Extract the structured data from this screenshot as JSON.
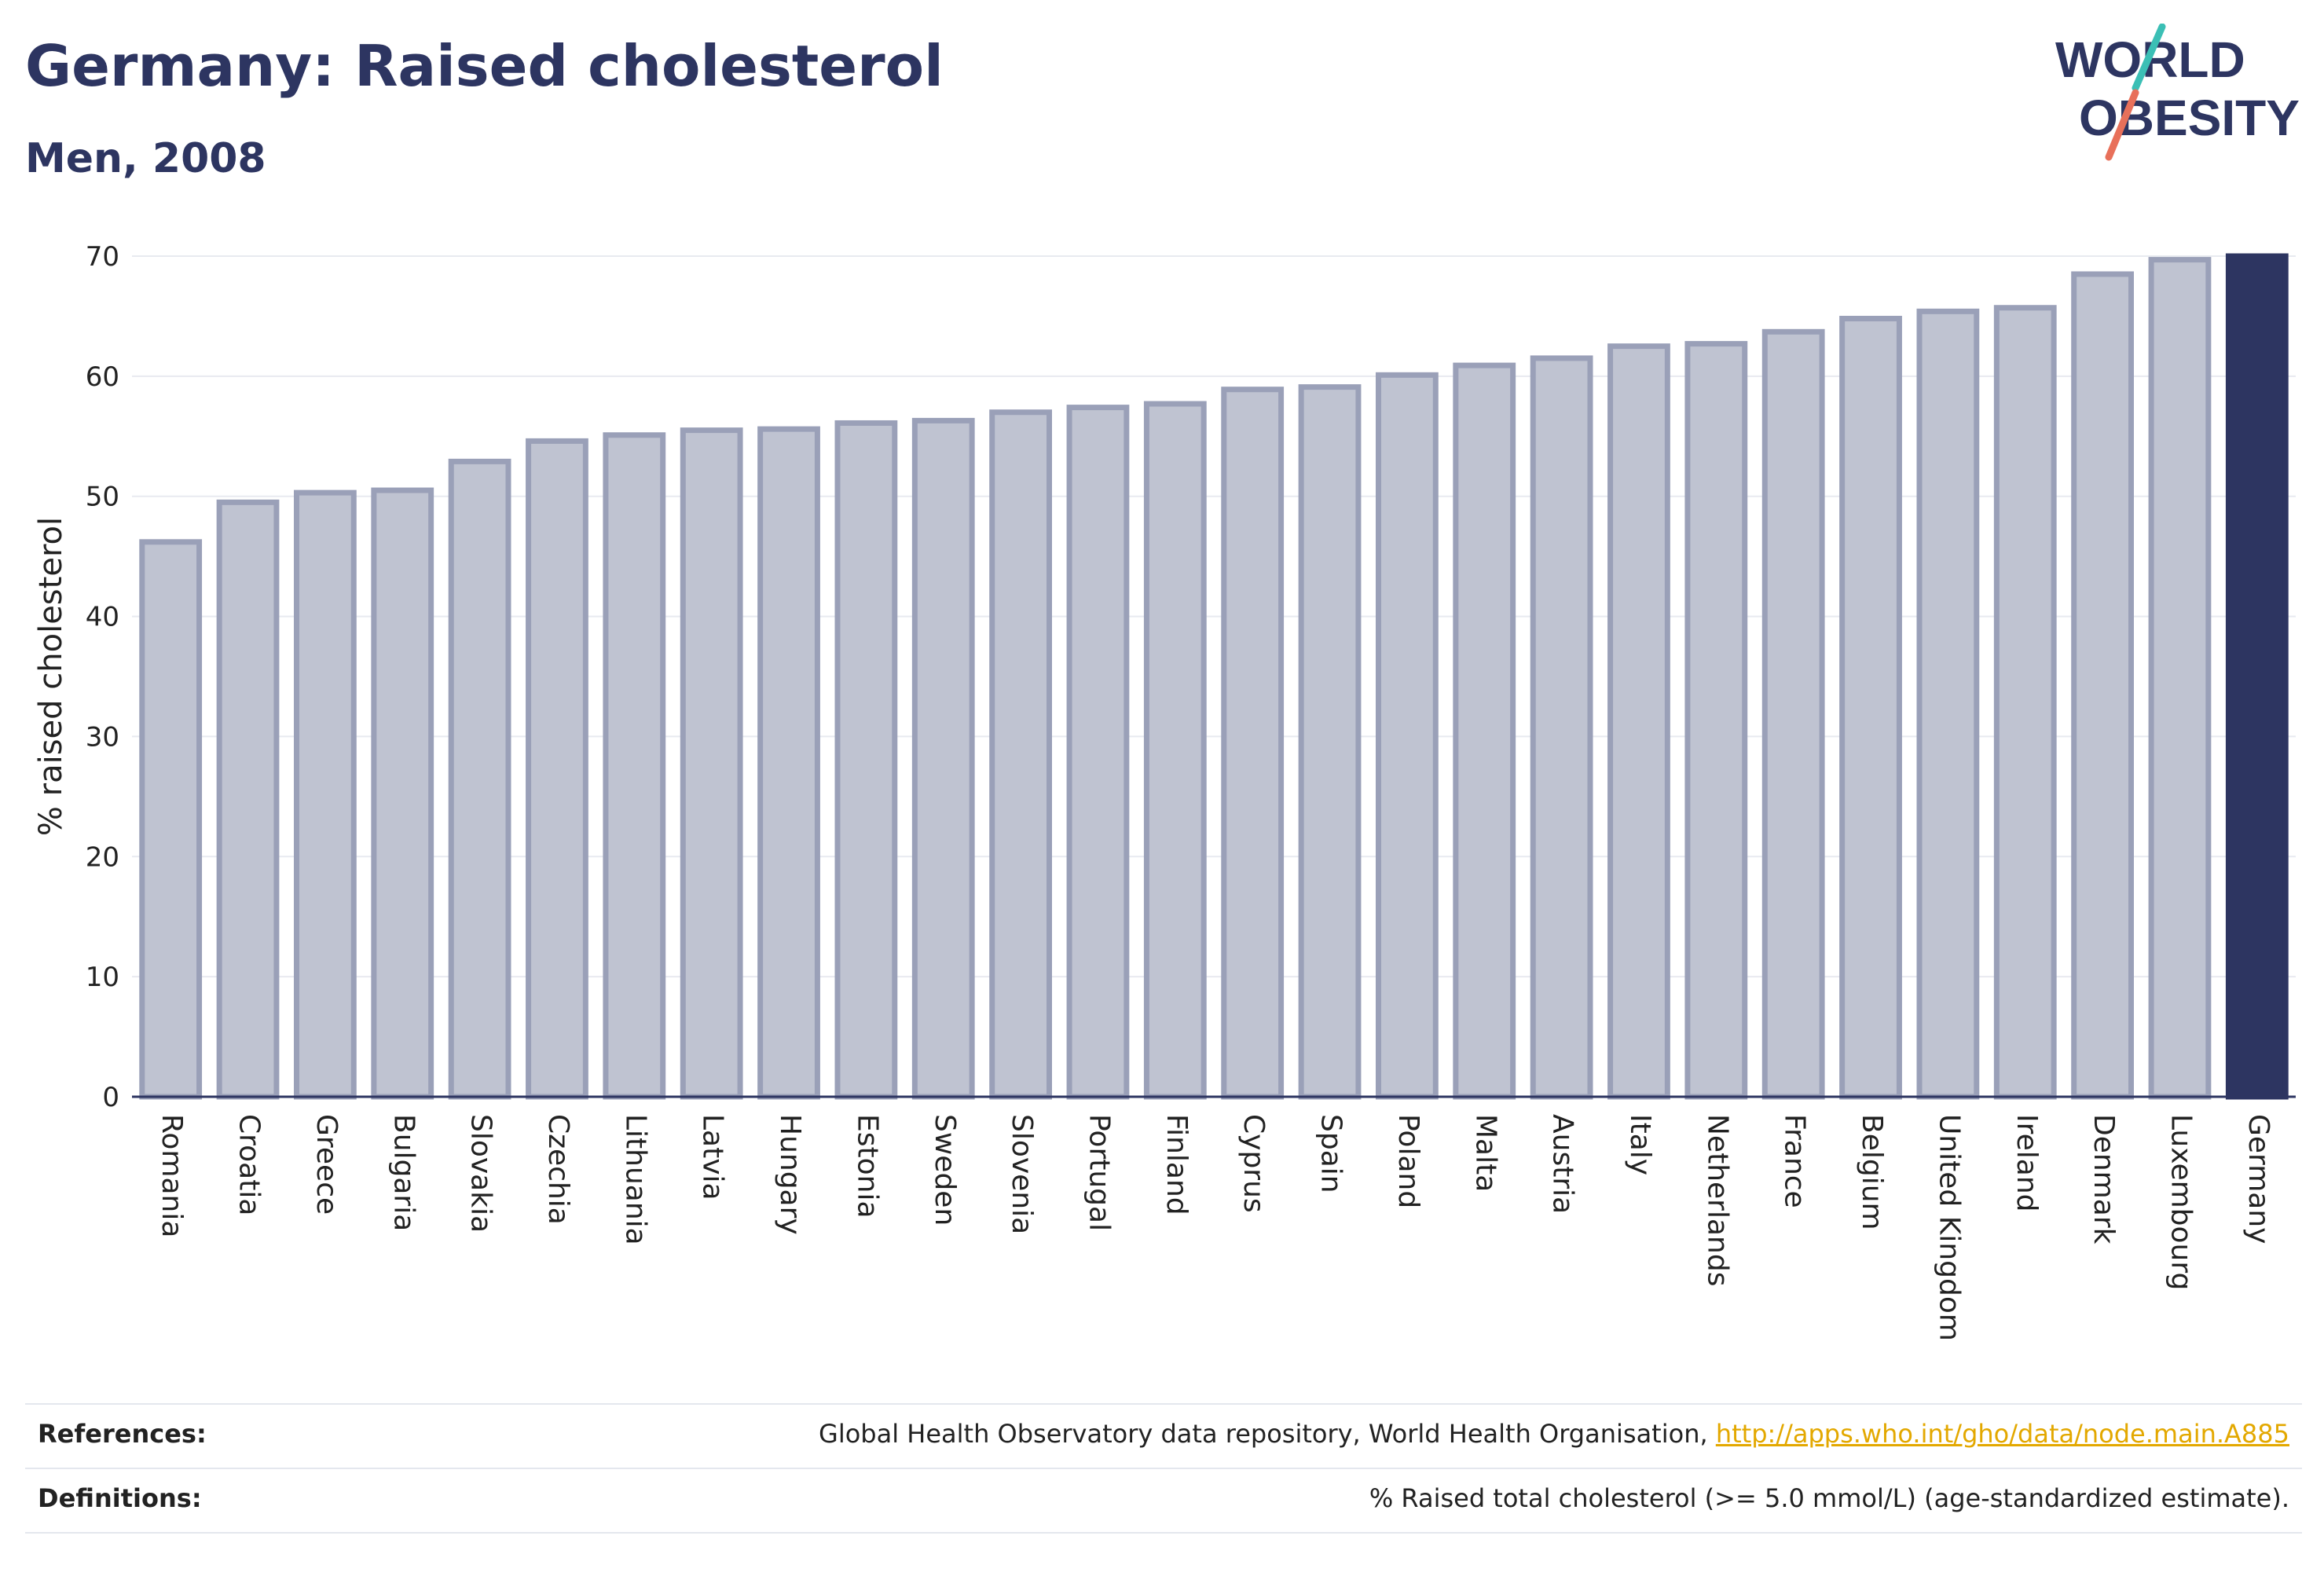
{
  "header": {
    "title": "Germany: Raised cholesterol",
    "subtitle": "Men, 2008"
  },
  "logo": {
    "line1": "WORLD",
    "line2": "OBESITY",
    "accent_teal": "#3bbfb5",
    "accent_coral": "#e8705a",
    "text_color": "#2d3561"
  },
  "colors": {
    "bar": "#bfc3d1",
    "bar_stroke": "#9aa0b8",
    "highlight": "#2d3561",
    "axis_text": "#222222",
    "grid": "#e8eaf0"
  },
  "chart_data": {
    "type": "bar",
    "ylabel": "% raised cholesterol",
    "xlabel": "",
    "ylim": [
      0,
      70
    ],
    "yticks": [
      0,
      10,
      20,
      30,
      40,
      50,
      60,
      70
    ],
    "grid": true,
    "highlight": "Germany",
    "categories": [
      "Romania",
      "Croatia",
      "Greece",
      "Bulgaria",
      "Slovakia",
      "Czechia",
      "Lithuania",
      "Latvia",
      "Hungary",
      "Estonia",
      "Sweden",
      "Slovenia",
      "Portugal",
      "Finland",
      "Cyprus",
      "Spain",
      "Poland",
      "Malta",
      "Austria",
      "Italy",
      "Netherlands",
      "France",
      "Belgium",
      "United Kingdom",
      "Ireland",
      "Denmark",
      "Luxembourg",
      "Germany"
    ],
    "values": [
      46.2,
      49.5,
      50.3,
      50.5,
      52.9,
      54.6,
      55.1,
      55.5,
      55.6,
      56.1,
      56.3,
      57.0,
      57.4,
      57.7,
      58.9,
      59.1,
      60.1,
      60.9,
      61.5,
      62.5,
      62.7,
      63.7,
      64.8,
      65.4,
      65.7,
      68.5,
      69.7,
      70.0
    ]
  },
  "footer": {
    "references_label": "References:",
    "references_text": "Global Health Observatory data repository, World Health Organisation, ",
    "references_link": "http://apps.who.int/gho/data/node.main.A885",
    "definitions_label": "Definitions:",
    "definitions_text": "% Raised total cholesterol (>= 5.0 mmol/L) (age-standardized estimate)."
  }
}
